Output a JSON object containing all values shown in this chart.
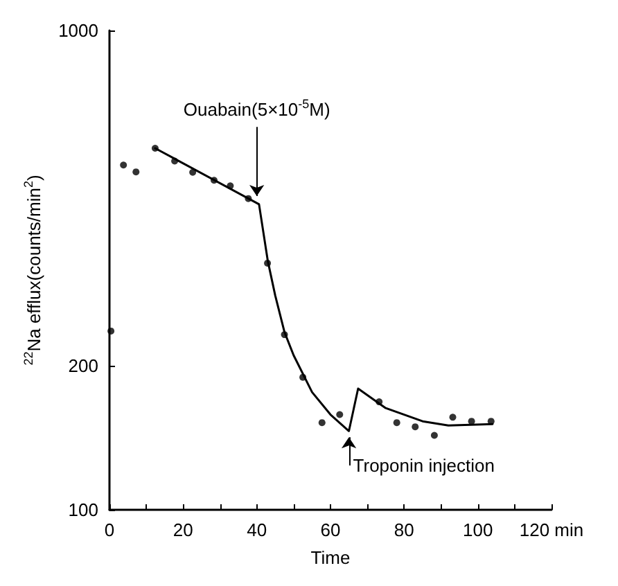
{
  "chart_data": {
    "type": "scatter",
    "xlabel": "Time",
    "ylabel": "$^{22}$Na efflux(counts/min$^{2}$)",
    "log": "y",
    "grid": false,
    "marker": "circle",
    "xlim": [
      0,
      120
    ],
    "ylim": [
      100,
      1000
    ],
    "xticks": [
      0,
      {
        "value": 10,
        "label": null
      },
      20,
      {
        "value": 30,
        "label": null
      },
      40,
      {
        "value": 50,
        "label": null
      },
      60,
      {
        "value": 70,
        "label": null
      },
      80,
      {
        "value": 90,
        "label": null
      },
      100,
      {
        "value": 110,
        "label": null
      },
      {
        "value": 120,
        "label": "120 min"
      }
    ],
    "yticks": [
      100,
      200,
      1000
    ],
    "series": [
      {
        "color": "#000000",
        "x": [
          0.4,
          3.8,
          7.2,
          12.4,
          17.7,
          22.6,
          28.4,
          32.8,
          37.7,
          42.9,
          47.5,
          52.5,
          57.7,
          62.5,
          73.2,
          78,
          83,
          88.2,
          93.2,
          98.3,
          103.6
        ],
        "values": [
          236,
          524,
          507,
          568,
          534,
          506,
          487,
          474,
          446,
          327,
          232,
          189,
          152,
          158,
          168,
          152,
          149,
          143,
          156,
          153,
          153
        ]
      },
      {
        "type": "line",
        "color": "#000000",
        "marker": "none",
        "x": [
          12.4,
          40.6,
          43,
          45,
          47.5,
          50,
          55,
          60,
          65,
          67.5,
          75,
          85,
          92,
          104
        ],
        "values": [
          568,
          434,
          330,
          280,
          235,
          210,
          176,
          158,
          146,
          179,
          163,
          153,
          150,
          151
        ]
      }
    ],
    "annotations": [
      {
        "text": "Ouabain(5×10$^{-5}$M)",
        "x": 40,
        "y": 434
      },
      {
        "text": "Troponin injection",
        "x": 65,
        "y": 146
      }
    ]
  }
}
